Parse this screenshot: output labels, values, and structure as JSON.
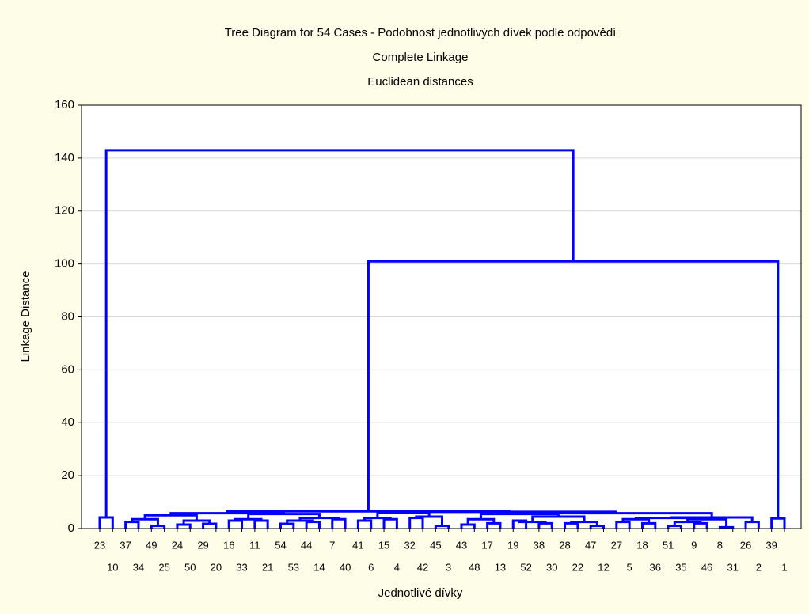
{
  "chart_data": {
    "type": "dendrogram",
    "title": "Tree Diagram for 54 Cases - Podobnost jednotlivých dívek podle odpovědí",
    "subtitle": "Complete Linkage",
    "subtitle2": "Euclidean distances",
    "x_label": "Jednotlivé dívky",
    "y_label": "Linkage Distance",
    "color": "#0000ff",
    "grid": true,
    "ylim": [
      0,
      160
    ],
    "yticks": [
      0,
      20,
      40,
      60,
      80,
      100,
      120,
      140,
      160
    ],
    "leaves": [
      "23",
      "10",
      "37",
      "34",
      "49",
      "25",
      "24",
      "50",
      "29",
      "20",
      "16",
      "33",
      "11",
      "21",
      "54",
      "53",
      "44",
      "14",
      "7",
      "40",
      "41",
      "6",
      "15",
      "4",
      "32",
      "42",
      "45",
      "3",
      "43",
      "48",
      "17",
      "13",
      "19",
      "52",
      "38",
      "30",
      "28",
      "22",
      "47",
      "12",
      "27",
      "5",
      "18",
      "36",
      "51",
      "35",
      "9",
      "46",
      "8",
      "31",
      "26",
      "2",
      "39",
      "1"
    ],
    "merges": [
      {
        "a": 0,
        "b": 1,
        "height": 4.2
      },
      {
        "a": 2,
        "b": 3,
        "height": 2.5
      },
      {
        "a": 4,
        "b": 5,
        "height": 1.0
      },
      {
        "a": 6,
        "b": 7,
        "height": 1.5
      },
      {
        "a": 8,
        "b": 9,
        "height": 1.8
      },
      {
        "a": 10,
        "b": 11,
        "height": 3.0
      },
      {
        "a": 12,
        "b": 13,
        "height": 3.0
      },
      {
        "a": 14,
        "b": 15,
        "height": 1.8
      },
      {
        "a": 16,
        "b": 17,
        "height": 2.5
      },
      {
        "a": 18,
        "b": 19,
        "height": 3.5
      },
      {
        "a": 20,
        "b": 21,
        "height": 3.0
      },
      {
        "a": 22,
        "b": 23,
        "height": 3.5
      },
      {
        "a": 24,
        "b": 25,
        "height": 4.0
      },
      {
        "a": 26,
        "b": 27,
        "height": 1.0
      },
      {
        "a": 28,
        "b": 29,
        "height": 1.5
      },
      {
        "a": 30,
        "b": 31,
        "height": 2.0
      },
      {
        "a": 32,
        "b": 33,
        "height": 3.0
      },
      {
        "a": 34,
        "b": 35,
        "height": 2.0
      },
      {
        "a": 36,
        "b": 37,
        "height": 2.0
      },
      {
        "a": 38,
        "b": 39,
        "height": 1.0
      },
      {
        "a": 40,
        "b": 41,
        "height": 2.5
      },
      {
        "a": 42,
        "b": 43,
        "height": 2.0
      },
      {
        "a": 44,
        "b": 45,
        "height": 1.0
      },
      {
        "a": 46,
        "b": 47,
        "height": 2.0
      },
      {
        "a": 48,
        "b": 49,
        "height": 0.5
      },
      {
        "a": 50,
        "b": 51,
        "height": 2.5
      },
      {
        "a": 52,
        "b": 53,
        "height": 3.8
      },
      {
        "a": 55,
        "b": 56,
        "height": 3.5
      },
      {
        "a": 57,
        "b": 58,
        "height": 3.0
      },
      {
        "a": 81,
        "b": 82,
        "height": 5.0
      },
      {
        "a": 59,
        "b": 60,
        "height": 3.5
      },
      {
        "a": 61,
        "b": 62,
        "height": 3.0
      },
      {
        "a": 85,
        "b": 63,
        "height": 4.0
      },
      {
        "a": 84,
        "b": 86,
        "height": 5.5
      },
      {
        "a": 83,
        "b": 87,
        "height": 5.8
      },
      {
        "a": 64,
        "b": 65,
        "height": 4.0
      },
      {
        "a": 66,
        "b": 67,
        "height": 4.5
      },
      {
        "a": 89,
        "b": 90,
        "height": 6.0
      },
      {
        "a": 68,
        "b": 69,
        "height": 3.5
      },
      {
        "a": 70,
        "b": 71,
        "height": 2.5
      },
      {
        "a": 72,
        "b": 73,
        "height": 2.5
      },
      {
        "a": 93,
        "b": 94,
        "height": 4.5
      },
      {
        "a": 92,
        "b": 95,
        "height": 5.5
      },
      {
        "a": 74,
        "b": 75,
        "height": 3.5
      },
      {
        "a": 76,
        "b": 77,
        "height": 2.5
      },
      {
        "a": 98,
        "b": 78,
        "height": 3.5
      },
      {
        "a": 97,
        "b": 99,
        "height": 4.0
      },
      {
        "a": 100,
        "b": 79,
        "height": 4.2
      },
      {
        "a": 96,
        "b": 101,
        "height": 5.8
      },
      {
        "a": 91,
        "b": 102,
        "height": 6.3
      },
      {
        "a": 88,
        "b": 103,
        "height": 6.5
      },
      {
        "a": 104,
        "b": 80,
        "height": 101
      },
      {
        "a": 54,
        "b": 105,
        "height": 143
      }
    ]
  }
}
